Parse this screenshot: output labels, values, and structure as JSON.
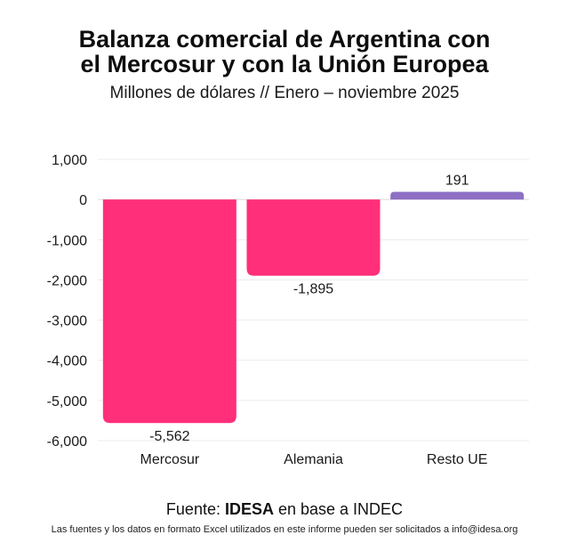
{
  "title_line1": "Balanza comercial de Argentina con",
  "title_line2": "el Mercosur y con la Unión Europea",
  "subtitle": "Millones de dólares // Enero – noviembre 2025",
  "source": {
    "prefix": "Fuente: ",
    "org": "IDESA",
    "suffix": " en base a INDEC"
  },
  "footnote": "Las fuentes y los datos en formato Excel utilizados en este informe pueden ser solicitados a info@idesa.org",
  "chart_data": {
    "type": "bar",
    "title": "Balanza comercial de Argentina con el Mercosur y con la Unión Europea",
    "subtitle": "Millones de dólares // Enero – noviembre 2025",
    "categories": [
      "Mercosur",
      "Alemania",
      "Resto UE"
    ],
    "values": [
      -5562,
      -1895,
      191
    ],
    "value_labels": [
      "-5,562",
      "-1,895",
      "191"
    ],
    "colors": [
      "#ff2f7a",
      "#ff2f7a",
      "#8d6fc4"
    ],
    "ylim": [
      -6000,
      1000
    ],
    "yticks": [
      1000,
      0,
      -1000,
      -2000,
      -3000,
      -4000,
      -5000,
      -6000
    ],
    "ytick_labels": [
      "1,000",
      "0",
      "-1,000",
      "-2,000",
      "-3,000",
      "-4,000",
      "-5,000",
      "-6,000"
    ],
    "xlabel": "",
    "ylabel": "",
    "grid": true,
    "legend": "none"
  }
}
